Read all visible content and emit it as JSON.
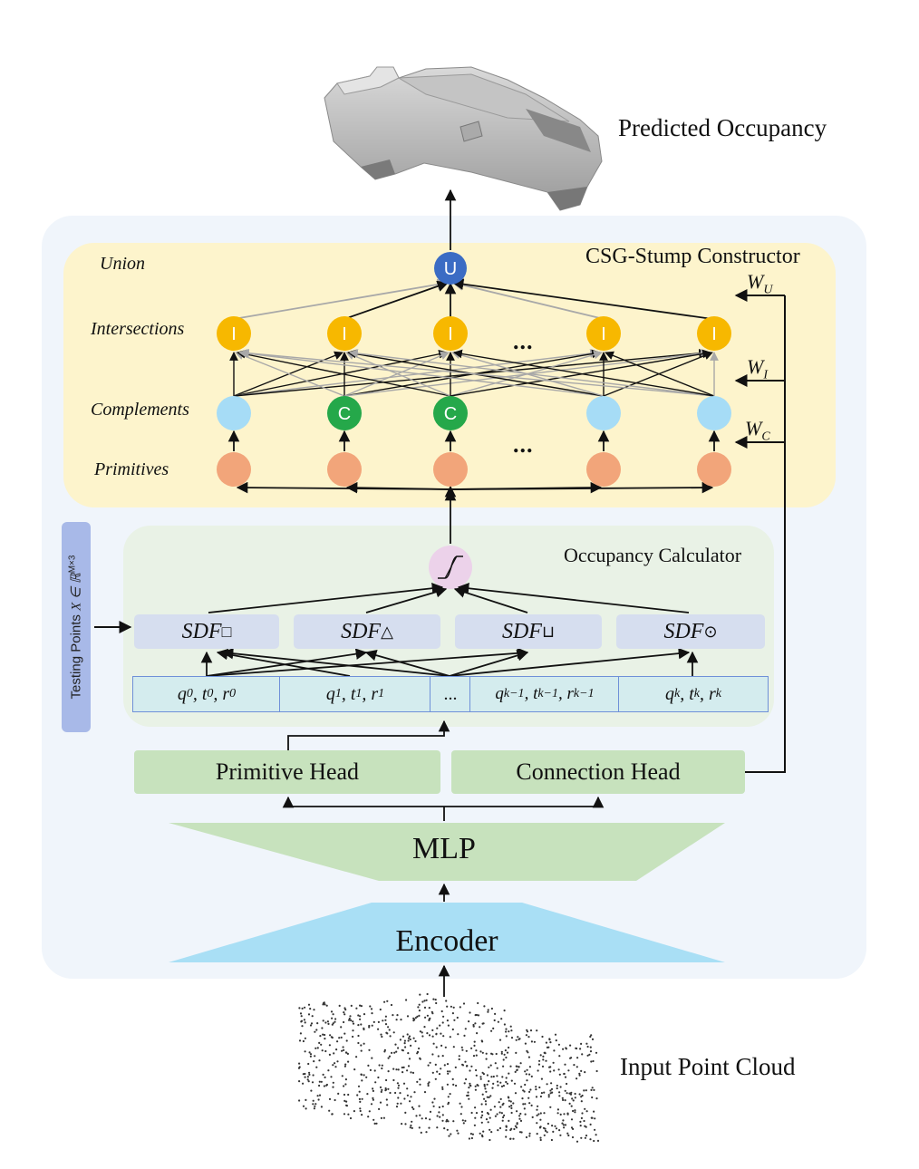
{
  "outputs": {
    "predicted_occupancy": "Predicted Occupancy",
    "input_point_cloud": "Input Point Cloud"
  },
  "csg": {
    "title": "CSG-Stump Constructor",
    "row_labels": {
      "union": "Union",
      "intersections": "Intersections",
      "complements": "Complements",
      "primitives": "Primitives"
    },
    "union_letter": "U",
    "intersection_letter": "I",
    "complement_letter": "C",
    "ellipsis": "...",
    "weights": {
      "wu": "W",
      "wu_sub": "U",
      "wi": "W",
      "wi_sub": "I",
      "wc": "W",
      "wc_sub": "C"
    },
    "colors": {
      "union": "#3b6cc4",
      "intersection": "#f7b800",
      "complement_active": "#25a84a",
      "complement_inactive": "#a6dcf6",
      "primitive": "#f2a57a"
    }
  },
  "occupancy": {
    "title": "Occupancy Calculator",
    "sdf_boxes": [
      {
        "base": "SDF",
        "sub": "□"
      },
      {
        "base": "SDF",
        "sub": "△"
      },
      {
        "base": "SDF",
        "sub": "⊔"
      },
      {
        "base": "SDF",
        "sub": "⊙"
      }
    ],
    "params": [
      {
        "q": "q",
        "t": "t",
        "r": "r",
        "sub": "0"
      },
      {
        "q": "q",
        "t": "t",
        "r": "r",
        "sub": "1"
      },
      {
        "ellipsis": "..."
      },
      {
        "q": "q",
        "t": "t",
        "r": "r",
        "sub": "k−1"
      },
      {
        "q": "q",
        "t": "t",
        "r": "r",
        "sub": "k"
      }
    ],
    "sigmoid_icon": "sigmoid-icon"
  },
  "testing_points": {
    "label": "Testing Points",
    "math": "X ∈ ℝ",
    "exp": "M×3"
  },
  "heads": {
    "primitive": "Primitive Head",
    "connection": "Connection Head"
  },
  "mlp": "MLP",
  "encoder": "Encoder",
  "colors": {
    "outer_panel": "#f0f5fb",
    "csg_panel": "#fdf4cc",
    "occupancy_panel": "#e9f2e6",
    "mlp": "#c7e2bd",
    "encoder": "#a9dff5",
    "heads": "#c7e2bd"
  }
}
